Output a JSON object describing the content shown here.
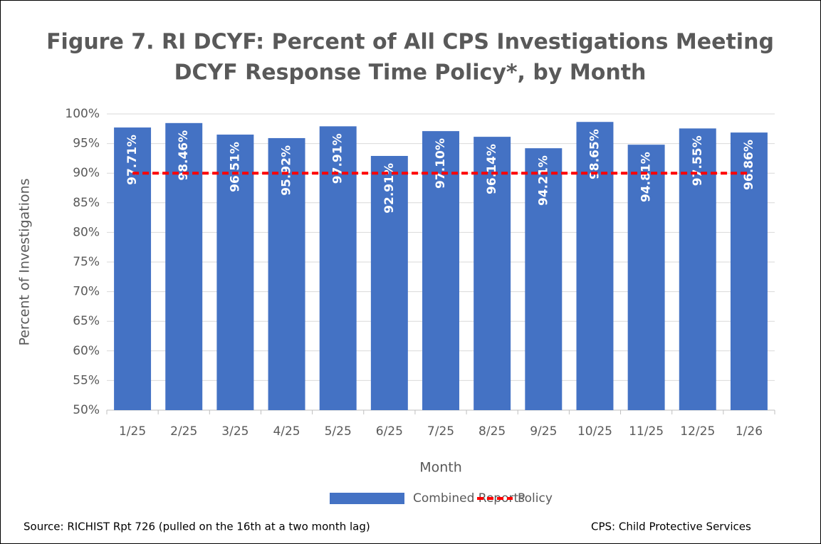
{
  "chart_data": {
    "type": "bar",
    "title": [
      "Figure 7. RI DCYF: Percent of All CPS Investigations Meeting",
      "DCYF Response Time Policy*, by Month"
    ],
    "x_label": "Month",
    "y_label": "Percent of Investigations",
    "categories": [
      "1/25",
      "2/25",
      "3/25",
      "4/25",
      "5/25",
      "6/25",
      "7/25",
      "8/25",
      "9/25",
      "10/25",
      "11/25",
      "12/25",
      "1/26"
    ],
    "series": [
      {
        "name": "Combined Reports",
        "color": "#4472c4",
        "type": "bar",
        "values": [
          97.71,
          98.46,
          96.51,
          95.92,
          97.91,
          92.91,
          97.1,
          96.14,
          94.21,
          98.65,
          94.81,
          97.55,
          96.86
        ],
        "value_labels": [
          "97.71%",
          "98.46%",
          "96.51%",
          "95.92%",
          "97.91%",
          "92.91%",
          "97.10%",
          "96.14%",
          "94.21%",
          "98.65%",
          "94.81%",
          "97.55%",
          "96.86%"
        ]
      },
      {
        "name": "Policy",
        "color": "#ff0000",
        "type": "line",
        "dashed": true,
        "values": [
          90,
          90,
          90,
          90,
          90,
          90,
          90,
          90,
          90,
          90,
          90,
          90,
          90
        ]
      }
    ],
    "ylim": [
      50,
      100
    ],
    "yticks": [
      {
        "value": 50,
        "label": "50%"
      },
      {
        "value": 55,
        "label": "55%"
      },
      {
        "value": 60,
        "label": "60%"
      },
      {
        "value": 65,
        "label": "65%"
      },
      {
        "value": 70,
        "label": "70%"
      },
      {
        "value": 75,
        "label": "75%"
      },
      {
        "value": 80,
        "label": "80%"
      },
      {
        "value": 85,
        "label": "85%"
      },
      {
        "value": 90,
        "label": "90%"
      },
      {
        "value": 95,
        "label": "95%"
      },
      {
        "value": 100,
        "label": "100%"
      }
    ],
    "grid": true,
    "legend": "bottom",
    "footnotes": [
      "Source: RICHIST Rpt 726 (pulled on the 16th at a two month lag)",
      "CPS: Child Protective Services"
    ]
  }
}
